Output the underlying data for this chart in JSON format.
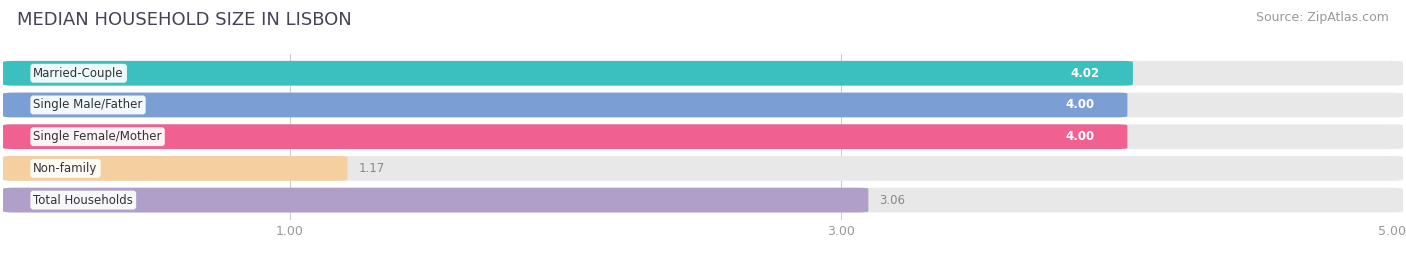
{
  "title": "MEDIAN HOUSEHOLD SIZE IN LISBON",
  "source": "Source: ZipAtlas.com",
  "categories": [
    "Married-Couple",
    "Single Male/Father",
    "Single Female/Mother",
    "Non-family",
    "Total Households"
  ],
  "values": [
    4.02,
    4.0,
    4.0,
    1.17,
    3.06
  ],
  "bar_colors": [
    "#3bbfbf",
    "#7b9fd4",
    "#f06090",
    "#f5cfa0",
    "#b09fc8"
  ],
  "value_text_colors": [
    "white",
    "white",
    "white",
    "#888888",
    "#888888"
  ],
  "value_inside": [
    true,
    true,
    true,
    false,
    false
  ],
  "xlim_min": 0.0,
  "xlim_max": 5.0,
  "xticks": [
    1.0,
    3.0,
    5.0
  ],
  "background_color": "#ffffff",
  "bar_bg_color": "#e8e8e8",
  "title_fontsize": 13,
  "source_fontsize": 9,
  "label_fontsize": 8.5,
  "value_fontsize": 8.5
}
